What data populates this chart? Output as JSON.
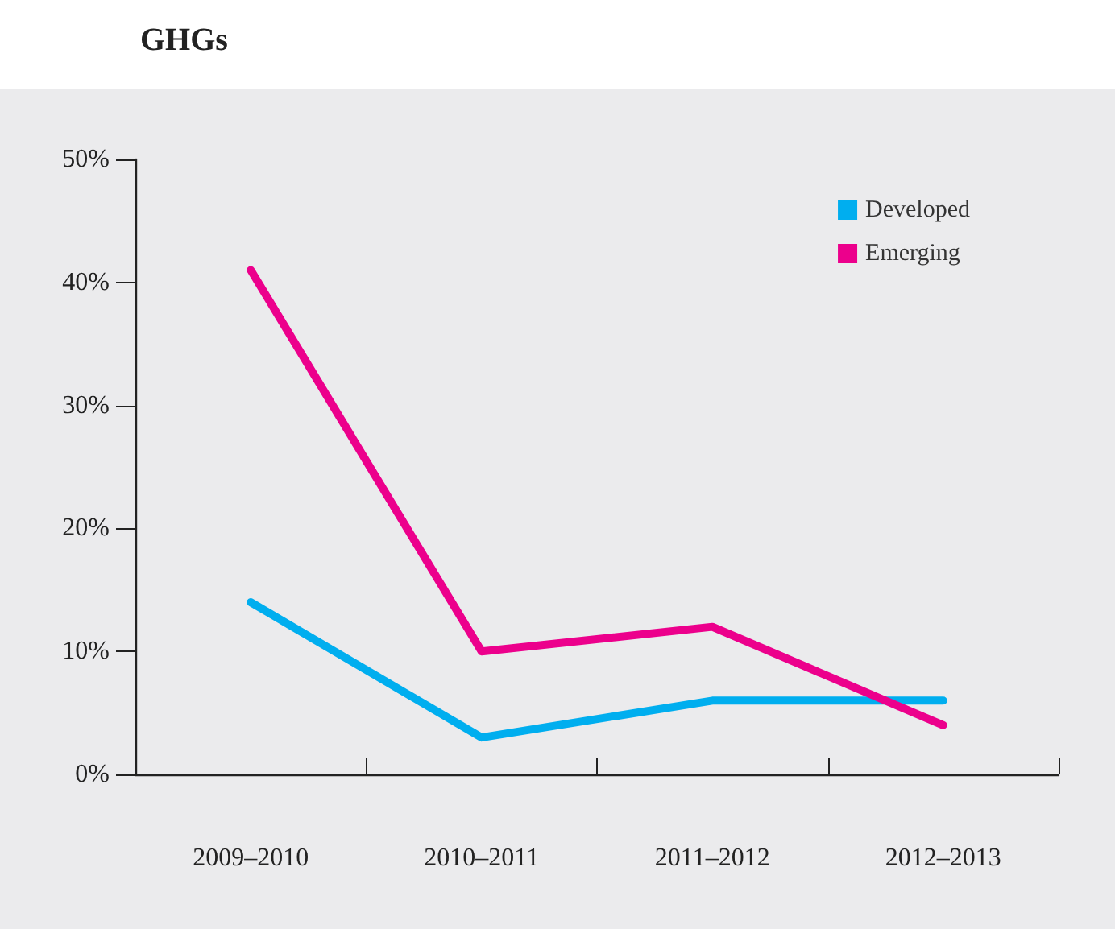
{
  "chart_data": {
    "type": "line",
    "title": "GHGs",
    "categories": [
      "2009–2010",
      "2010–2011",
      "2011–2012",
      "2012–2013"
    ],
    "series": [
      {
        "name": "Developed",
        "color": "#00aeef",
        "values": [
          14,
          3,
          6,
          6
        ]
      },
      {
        "name": "Emerging",
        "color": "#ec008c",
        "values": [
          41,
          10,
          12,
          4
        ]
      }
    ],
    "ylim": [
      0,
      50
    ],
    "yticks": [
      {
        "value": 0,
        "label": "0%"
      },
      {
        "value": 10,
        "label": "10%"
      },
      {
        "value": 20,
        "label": "20%"
      },
      {
        "value": 30,
        "label": "30%"
      },
      {
        "value": 40,
        "label": "40%"
      },
      {
        "value": 50,
        "label": "50%"
      }
    ],
    "grid": false,
    "legend": "top right",
    "marker": "none",
    "line_style": "solid"
  }
}
